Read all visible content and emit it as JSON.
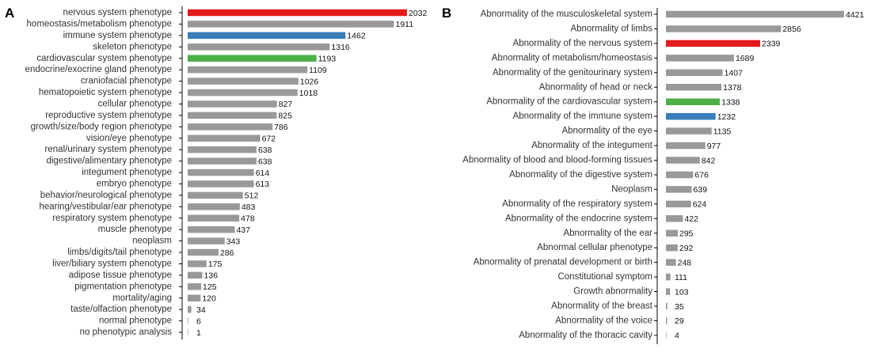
{
  "colors": {
    "default_bar": "#999999",
    "nervous": "#e41a1c",
    "immune": "#377eb8",
    "cardiovascular": "#4daf4a"
  },
  "chart_data": [
    {
      "panel_label": "A",
      "type": "bar",
      "orientation": "horizontal",
      "categories": [
        "nervous system phenotype",
        "homeostasis/metabolism phenotype",
        "immune system phenotype",
        "skeleton phenotype",
        "cardiovascular system phenotype",
        "endocrine/exocrine gland phenotype",
        "craniofacial phenotype",
        "hematopoietic system phenotype",
        "cellular phenotype",
        "reproductive system phenotype",
        "growth/size/body region phenotype",
        "vision/eye phenotype",
        "renal/urinary system phenotype",
        "digestive/alimentary phenotype",
        "integument phenotype",
        "embryo phenotype",
        "behavior/neurological phenotype",
        "hearing/vestibular/ear phenotype",
        "respiratory system phenotype",
        "muscle phenotype",
        "neoplasm",
        "limbs/digits/tail phenotype",
        "liver/biliary system phenotype",
        "adipose tissue phenotype",
        "pigmentation phenotype",
        "mortality/aging",
        "taste/olfaction phenotype",
        "normal phenotype",
        "no phenotypic analysis"
      ],
      "values": [
        2032,
        1911,
        1462,
        1316,
        1193,
        1109,
        1026,
        1018,
        827,
        825,
        786,
        672,
        638,
        638,
        614,
        613,
        512,
        483,
        478,
        437,
        343,
        286,
        175,
        136,
        125,
        120,
        34,
        6,
        1
      ],
      "highlight": {
        "0": "nervous",
        "2": "immune",
        "4": "cardiovascular"
      },
      "xlim": [
        0,
        2032
      ],
      "grid": false,
      "legend": "none",
      "title": "",
      "xlabel": "",
      "ylabel": ""
    },
    {
      "panel_label": "B",
      "type": "bar",
      "orientation": "horizontal",
      "categories": [
        "Abnormality of the musculoskeletal system",
        "Abnormality of limbs",
        "Abnormality of the nervous system",
        "Abnormality of metabolism/homeostasis",
        "Abnormality of the genitourinary system",
        "Abnormality of head or neck",
        "Abnormality of the cardiovascular system",
        "Abnormality of the immune system",
        "Abnormality of the eye",
        "Abnormality of the integument",
        "Abnormality of blood and blood-forming tissues",
        "Abnormality of the digestive system",
        "Neoplasm",
        "Abnormality of the respiratory system",
        "Abnormality of the endocrine system",
        "Abnormality of the ear",
        "Abnormal cellular phenotype",
        "Abnormality of prenatal development or birth",
        "Constitutional symptom",
        "Growth abnormality",
        "Abnormality of the breast",
        "Abnormality of the voice",
        "Abnormality of the thoracic cavity"
      ],
      "values": [
        4421,
        2856,
        2339,
        1689,
        1407,
        1378,
        1338,
        1232,
        1135,
        977,
        842,
        676,
        639,
        624,
        422,
        295,
        292,
        248,
        111,
        103,
        35,
        29,
        4
      ],
      "highlight": {
        "2": "nervous",
        "6": "cardiovascular",
        "7": "immune"
      },
      "xlim": [
        0,
        4421
      ],
      "grid": false,
      "legend": "none",
      "title": "",
      "xlabel": "",
      "ylabel": ""
    }
  ]
}
